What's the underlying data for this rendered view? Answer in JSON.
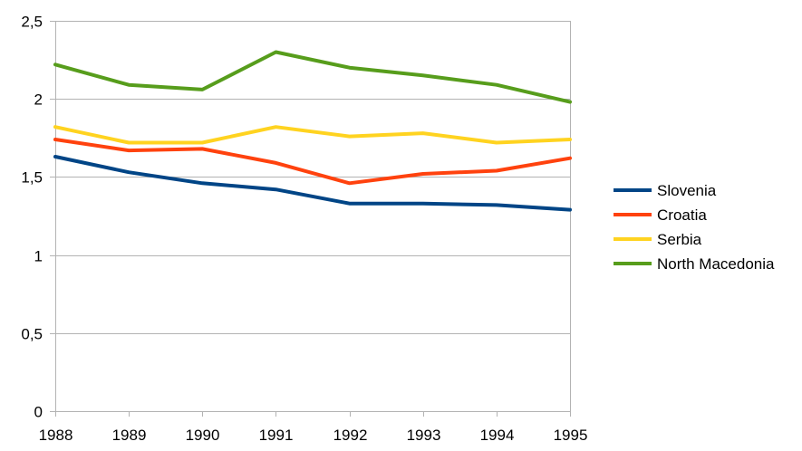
{
  "chart_data": {
    "type": "line",
    "title": "",
    "xlabel": "",
    "ylabel": "",
    "x": [
      "1988",
      "1989",
      "1990",
      "1991",
      "1992",
      "1993",
      "1994",
      "1995"
    ],
    "ylim": [
      0,
      2.5
    ],
    "yticks": [
      0,
      0.5,
      1,
      1.5,
      2,
      2.5
    ],
    "ytick_labels": [
      "0",
      "0,5",
      "1",
      "1,5",
      "2",
      "2,5"
    ],
    "grid": true,
    "legend_position": "right",
    "series": [
      {
        "name": "Slovenia",
        "color": "#004586",
        "values": [
          1.63,
          1.53,
          1.46,
          1.42,
          1.33,
          1.33,
          1.32,
          1.29
        ]
      },
      {
        "name": "Croatia",
        "color": "#ff420e",
        "values": [
          1.74,
          1.67,
          1.68,
          1.59,
          1.46,
          1.52,
          1.54,
          1.62
        ]
      },
      {
        "name": "Serbia",
        "color": "#ffd320",
        "values": [
          1.82,
          1.72,
          1.72,
          1.82,
          1.76,
          1.78,
          1.72,
          1.74
        ]
      },
      {
        "name": "North Macedonia",
        "color": "#579d1c",
        "values": [
          2.22,
          2.09,
          2.06,
          2.3,
          2.2,
          2.15,
          2.09,
          1.98
        ]
      }
    ]
  }
}
